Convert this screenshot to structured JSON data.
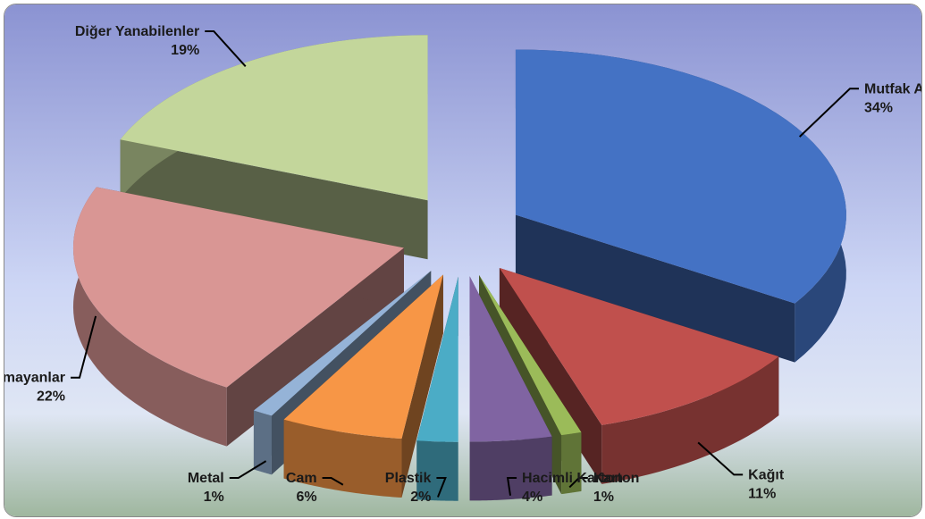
{
  "chart_data": {
    "type": "pie",
    "variant": "3d-exploded",
    "title": "",
    "unit": "%",
    "slices": [
      {
        "label": "Mutfak Atıkları",
        "value": 34,
        "display": "34%",
        "color": "#4472C4"
      },
      {
        "label": "Kağıt",
        "value": 11,
        "display": "11%",
        "color": "#C0504D"
      },
      {
        "label": "Karton",
        "value": 1,
        "display": "1%",
        "color": "#9BBB59"
      },
      {
        "label": "Hacimli Karton",
        "value": 4,
        "display": "4%",
        "color": "#8064A2"
      },
      {
        "label": "Plastik",
        "value": 2,
        "display": "2%",
        "color": "#4BACC6"
      },
      {
        "label": "Cam",
        "value": 6,
        "display": "6%",
        "color": "#F79646"
      },
      {
        "label": "Metal",
        "value": 1,
        "display": "1%",
        "color": "#95B3D7"
      },
      {
        "label": "Diğer Yanmayanlar",
        "value": 22,
        "display": "22%",
        "color": "#D99694"
      },
      {
        "label": "Diğer Yanabilenler",
        "value": 19,
        "display": "19%",
        "color": "#C3D69B"
      }
    ],
    "legend": "none",
    "data_labels": "outside-with-leader-lines"
  }
}
